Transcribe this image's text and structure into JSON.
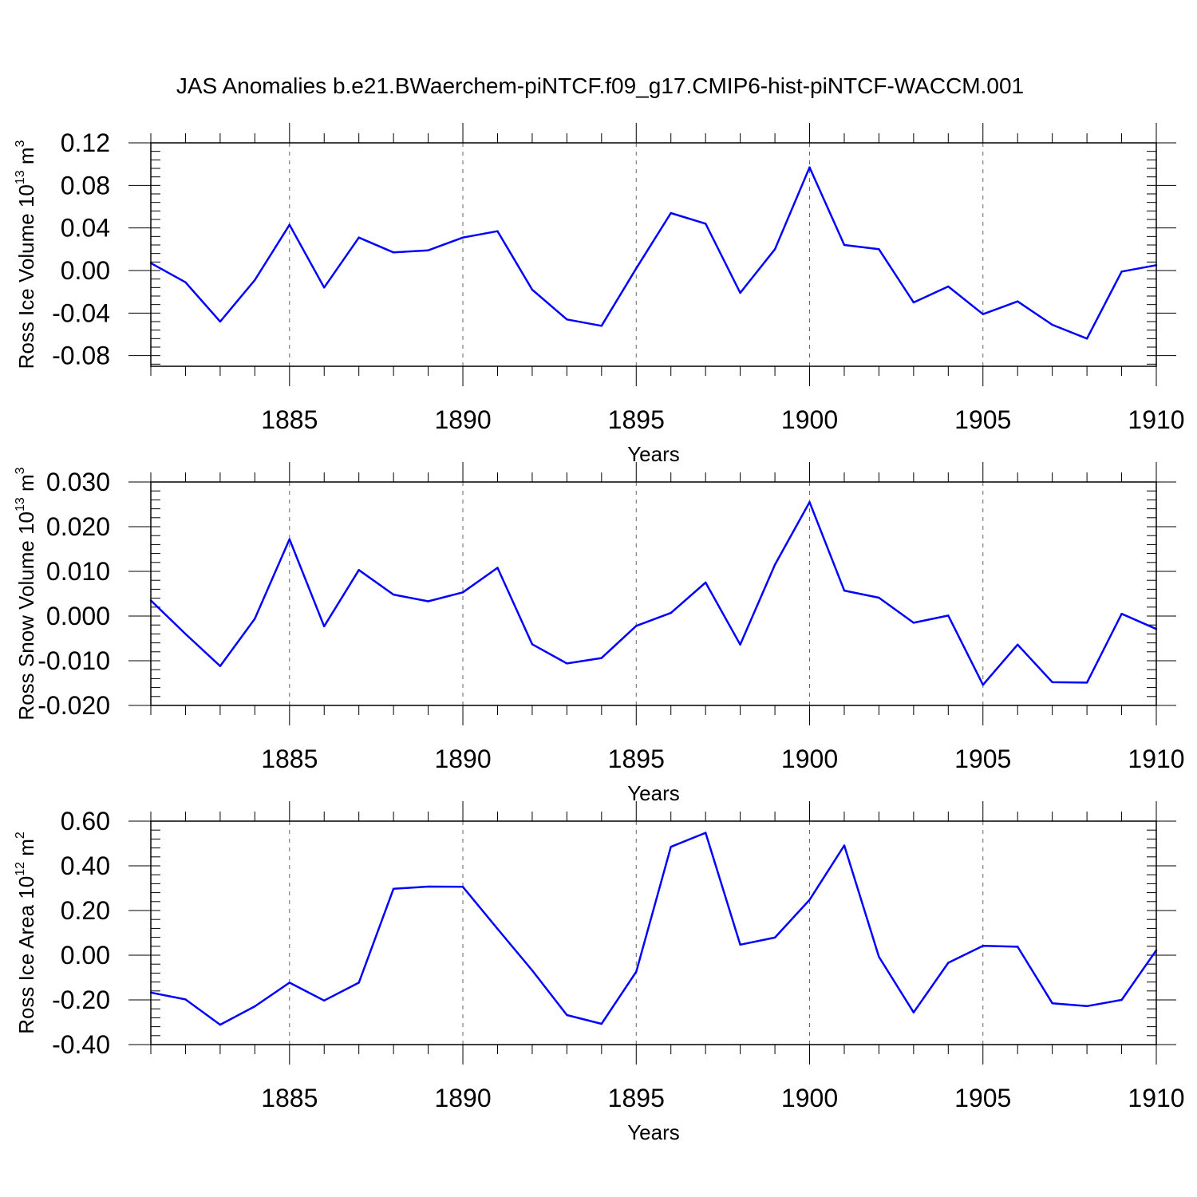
{
  "title": "JAS Anomalies b.e21.BWaerchem-piNTCF.f09_g17.CMIP6-hist-piNTCF-WACCM.001",
  "chart_data": [
    {
      "type": "line",
      "ylabel": {
        "main": "Ross Ice Volume 10",
        "exp": "13",
        "unit": " m",
        "unit_exp": "3"
      },
      "xlabel": "Years",
      "xlim": [
        1881,
        1910
      ],
      "ylim": [
        -0.09,
        0.12
      ],
      "yticks": [
        -0.08,
        -0.04,
        0.0,
        0.04,
        0.08,
        0.12
      ],
      "ytick_labels": [
        "-0.08",
        "-0.04",
        "0.00",
        "0.04",
        "0.08",
        "0.12"
      ],
      "xticks": [
        1885,
        1890,
        1895,
        1900,
        1905,
        1910
      ],
      "xtick_labels": [
        "1885",
        "1890",
        "1895",
        "1900",
        "1905",
        "1910"
      ],
      "color": "#0000ff",
      "x": [
        1881,
        1882,
        1883,
        1884,
        1885,
        1886,
        1887,
        1888,
        1889,
        1890,
        1891,
        1892,
        1893,
        1894,
        1895,
        1896,
        1897,
        1898,
        1899,
        1900,
        1901,
        1902,
        1903,
        1904,
        1905,
        1906,
        1907,
        1908,
        1909,
        1910
      ],
      "y": [
        0.007,
        -0.011,
        -0.048,
        -0.009,
        0.043,
        -0.016,
        0.031,
        0.017,
        0.019,
        0.031,
        0.037,
        -0.018,
        -0.046,
        -0.052,
        0.002,
        0.054,
        0.044,
        -0.021,
        0.02,
        0.097,
        0.024,
        0.02,
        -0.03,
        -0.015,
        -0.041,
        -0.029,
        -0.051,
        -0.064,
        -0.001,
        0.005
      ]
    },
    {
      "type": "line",
      "ylabel": {
        "main": "Ross Snow Volume 10",
        "exp": "13",
        "unit": " m",
        "unit_exp": "3"
      },
      "xlabel": "Years",
      "xlim": [
        1881,
        1910
      ],
      "ylim": [
        -0.02,
        0.03
      ],
      "yticks": [
        -0.02,
        -0.01,
        0.0,
        0.01,
        0.02,
        0.03
      ],
      "ytick_labels": [
        "-0.020",
        "-0.010",
        "0.000",
        "0.010",
        "0.020",
        "0.030"
      ],
      "xticks": [
        1885,
        1890,
        1895,
        1900,
        1905,
        1910
      ],
      "xtick_labels": [
        "1885",
        "1890",
        "1895",
        "1900",
        "1905",
        "1910"
      ],
      "color": "#0000ff",
      "x": [
        1881,
        1882,
        1883,
        1884,
        1885,
        1886,
        1887,
        1888,
        1889,
        1890,
        1891,
        1892,
        1893,
        1894,
        1895,
        1896,
        1897,
        1898,
        1899,
        1900,
        1901,
        1902,
        1903,
        1904,
        1905,
        1906,
        1907,
        1908,
        1909,
        1910
      ],
      "y": [
        0.0035,
        -0.004,
        -0.0112,
        -0.0006,
        0.0172,
        -0.0023,
        0.0103,
        0.0048,
        0.0033,
        0.0053,
        0.0108,
        -0.0063,
        -0.0106,
        -0.0094,
        -0.0022,
        0.0007,
        0.0075,
        -0.0064,
        0.0115,
        0.0255,
        0.0057,
        0.0041,
        -0.0015,
        0.0001,
        -0.0154,
        -0.0064,
        -0.0148,
        -0.0149,
        0.0005,
        -0.0029
      ]
    },
    {
      "type": "line",
      "ylabel": {
        "main": "Ross Ice Area 10",
        "exp": "12",
        "unit": " m",
        "unit_exp": "2"
      },
      "xlabel": "Years",
      "xlim": [
        1881,
        1910
      ],
      "ylim": [
        -0.4,
        0.6
      ],
      "yticks": [
        -0.4,
        -0.2,
        0.0,
        0.2,
        0.4,
        0.6
      ],
      "ytick_labels": [
        "-0.40",
        "-0.20",
        "0.00",
        "0.20",
        "0.40",
        "0.60"
      ],
      "xticks": [
        1885,
        1890,
        1895,
        1900,
        1905,
        1910
      ],
      "xtick_labels": [
        "1885",
        "1890",
        "1895",
        "1900",
        "1905",
        "1910"
      ],
      "color": "#0000ff",
      "x": [
        1881,
        1882,
        1883,
        1884,
        1885,
        1886,
        1887,
        1888,
        1889,
        1890,
        1891,
        1892,
        1893,
        1894,
        1895,
        1896,
        1897,
        1898,
        1899,
        1900,
        1901,
        1902,
        1903,
        1904,
        1905,
        1906,
        1907,
        1908,
        1909,
        1910
      ],
      "y": [
        -0.167,
        -0.198,
        -0.311,
        -0.229,
        -0.123,
        -0.203,
        -0.123,
        0.297,
        0.307,
        0.306,
        0.118,
        -0.068,
        -0.268,
        -0.307,
        -0.074,
        0.485,
        0.548,
        0.047,
        0.079,
        0.248,
        0.491,
        -0.007,
        -0.256,
        -0.034,
        0.042,
        0.038,
        -0.215,
        -0.228,
        -0.2,
        0.022
      ]
    }
  ]
}
